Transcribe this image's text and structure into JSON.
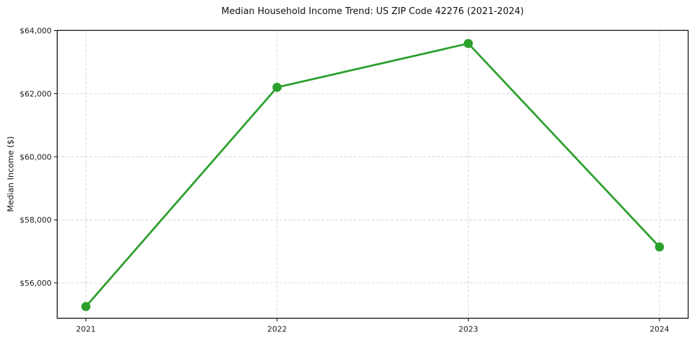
{
  "chart_data": {
    "type": "line",
    "title": "Median Household Income Trend: US ZIP Code 42276 (2021-2024)",
    "xlabel": "",
    "ylabel": "Median Income ($)",
    "x": [
      2021,
      2022,
      2023,
      2024
    ],
    "series": [
      {
        "name": "Median Household Income",
        "values": [
          55250,
          62200,
          63590,
          57140
        ]
      }
    ],
    "xticks": [
      2021,
      2022,
      2023,
      2024
    ],
    "xtick_labels": [
      "2021",
      "2022",
      "2023",
      "2024"
    ],
    "yticks": [
      56000,
      58000,
      60000,
      62000,
      64000
    ],
    "ytick_labels": [
      "$56,000",
      "$58,000",
      "$60,000",
      "$62,000",
      "$64,000"
    ],
    "xlim": [
      2020.85,
      2024.15
    ],
    "ylim": [
      54880,
      64005
    ],
    "grid": true,
    "grid_style": "dashed",
    "legend": "none",
    "colors": {
      "line": "#2ca02c",
      "marker": "#2ca02c",
      "grid": "#d2d2d2",
      "spine": "#000000",
      "text": "#1a1a1a",
      "background": "#ffffff"
    },
    "marker": "o",
    "marker_radius": 6.5,
    "line_width": 2.8
  }
}
